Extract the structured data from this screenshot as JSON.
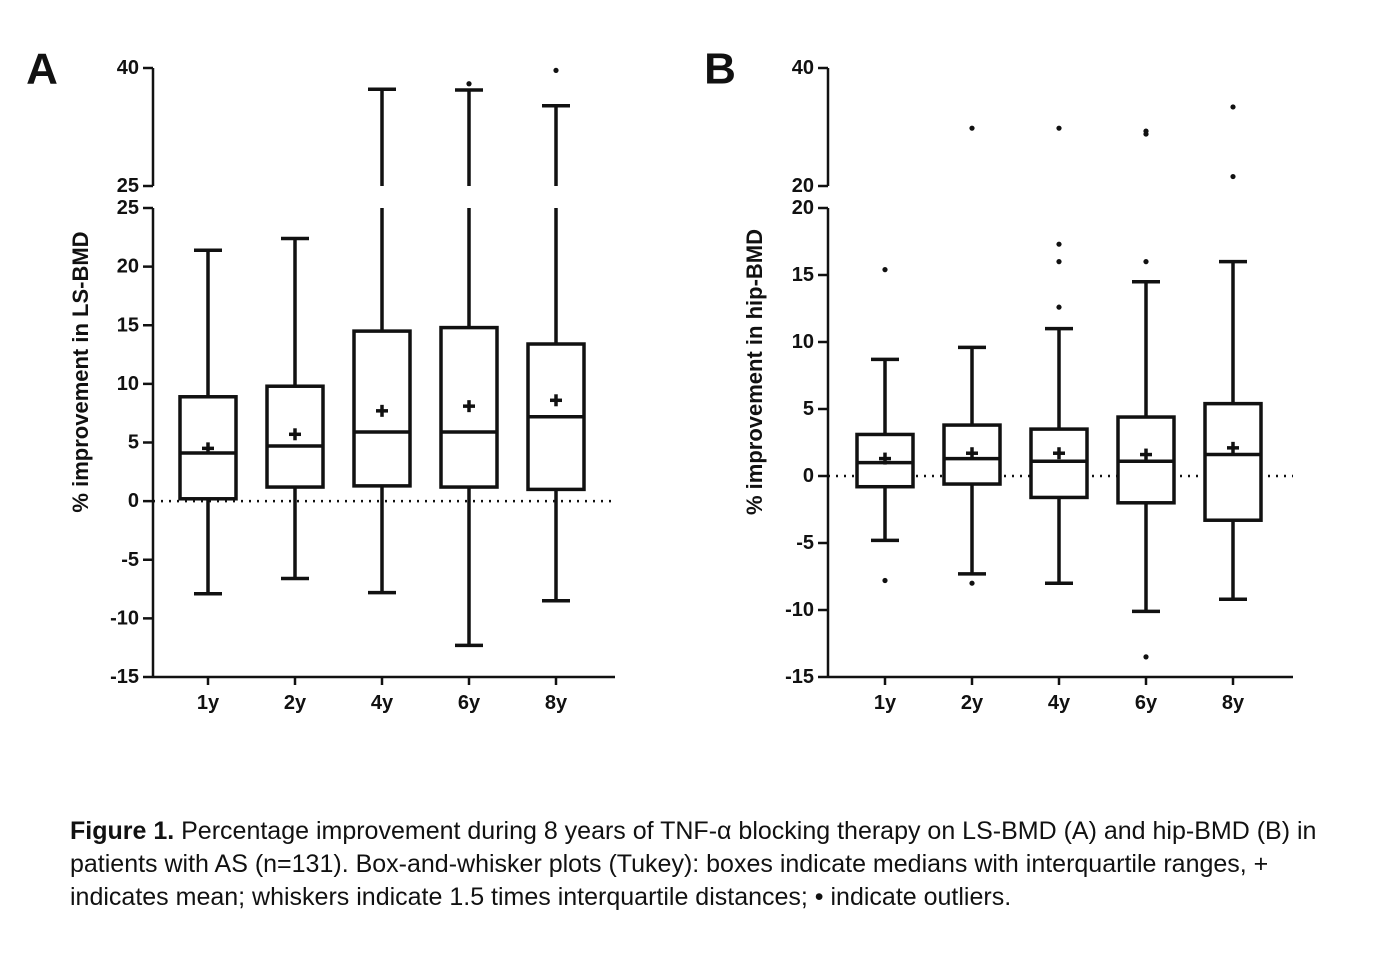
{
  "chart_data": [
    {
      "type": "boxplot",
      "panel_label": "A",
      "ylabel": "% improvement in LS-BMD",
      "categories": [
        "1y",
        "2y",
        "4y",
        "6y",
        "8y"
      ],
      "y_axis_lower": {
        "range": [
          -15,
          25
        ],
        "ticks": [
          "-15",
          "-10",
          "-5",
          "0",
          "5",
          "10",
          "15",
          "20",
          "25"
        ]
      },
      "y_axis_upper": {
        "range": [
          25,
          40
        ],
        "ticks": [
          "25",
          "40"
        ]
      },
      "reference_line": 0,
      "boxes": [
        {
          "category": "1y",
          "whisker_low": -7.9,
          "q1": 0.2,
          "median": 4.1,
          "q3": 8.9,
          "whisker_high": 21.4,
          "mean": 4.5,
          "outliers": []
        },
        {
          "category": "2y",
          "whisker_low": -6.6,
          "q1": 1.2,
          "median": 4.7,
          "q3": 9.8,
          "whisker_high": 22.4,
          "mean": 5.7,
          "outliers": []
        },
        {
          "category": "4y",
          "whisker_low": -7.8,
          "q1": 1.3,
          "median": 5.9,
          "q3": 14.5,
          "whisker_high": 37.3,
          "mean": 7.7,
          "outliers": []
        },
        {
          "category": "6y",
          "whisker_low": -12.3,
          "q1": 1.2,
          "median": 5.9,
          "q3": 14.8,
          "whisker_high": 37.2,
          "mean": 8.1,
          "outliers": [
            38.0
          ]
        },
        {
          "category": "8y",
          "whisker_low": -8.5,
          "q1": 1.0,
          "median": 7.2,
          "q3": 13.4,
          "whisker_high": 35.2,
          "mean": 8.6,
          "outliers": [
            39.7
          ]
        }
      ]
    },
    {
      "type": "boxplot",
      "panel_label": "B",
      "ylabel": "% improvement in hip-BMD",
      "categories": [
        "1y",
        "2y",
        "4y",
        "6y",
        "8y"
      ],
      "y_axis_lower": {
        "range": [
          -15,
          20
        ],
        "ticks": [
          "-15",
          "-10",
          "-5",
          "0",
          "5",
          "10",
          "15",
          "20"
        ]
      },
      "y_axis_upper": {
        "range": [
          20,
          40
        ],
        "ticks": [
          "20",
          "40"
        ]
      },
      "reference_line": 0,
      "boxes": [
        {
          "category": "1y",
          "whisker_low": -4.8,
          "q1": -0.8,
          "median": 1.0,
          "q3": 3.1,
          "whisker_high": 8.7,
          "mean": 1.3,
          "outliers": [
            -7.8,
            15.4
          ]
        },
        {
          "category": "2y",
          "whisker_low": -7.3,
          "q1": -0.6,
          "median": 1.3,
          "q3": 3.8,
          "whisker_high": 9.6,
          "mean": 1.7,
          "outliers": [
            -8.0,
            29.8
          ]
        },
        {
          "category": "4y",
          "whisker_low": -8.0,
          "q1": -1.6,
          "median": 1.1,
          "q3": 3.5,
          "whisker_high": 11.0,
          "mean": 1.7,
          "outliers": [
            12.6,
            16.0,
            17.3,
            29.8
          ]
        },
        {
          "category": "6y",
          "whisker_low": -10.1,
          "q1": -2.0,
          "median": 1.1,
          "q3": 4.4,
          "whisker_high": 14.5,
          "mean": 1.6,
          "outliers": [
            -13.5,
            16.0,
            28.8,
            29.3
          ]
        },
        {
          "category": "8y",
          "whisker_low": -9.2,
          "q1": -3.3,
          "median": 1.6,
          "q3": 5.4,
          "whisker_high": 16.0,
          "mean": 2.1,
          "outliers": [
            21.6,
            33.4
          ]
        }
      ]
    }
  ],
  "caption": {
    "label": "Figure 1.",
    "text": " Percentage improvement during 8 years of TNF-α blocking therapy on LS-BMD (A) and hip-BMD (B) in patients with AS (n=131). Box-and-whisker plots (Tukey): boxes indicate medians with interquartile ranges, + indicates mean; whiskers indicate 1.5 times interquartile distances; • indicate outliers."
  }
}
